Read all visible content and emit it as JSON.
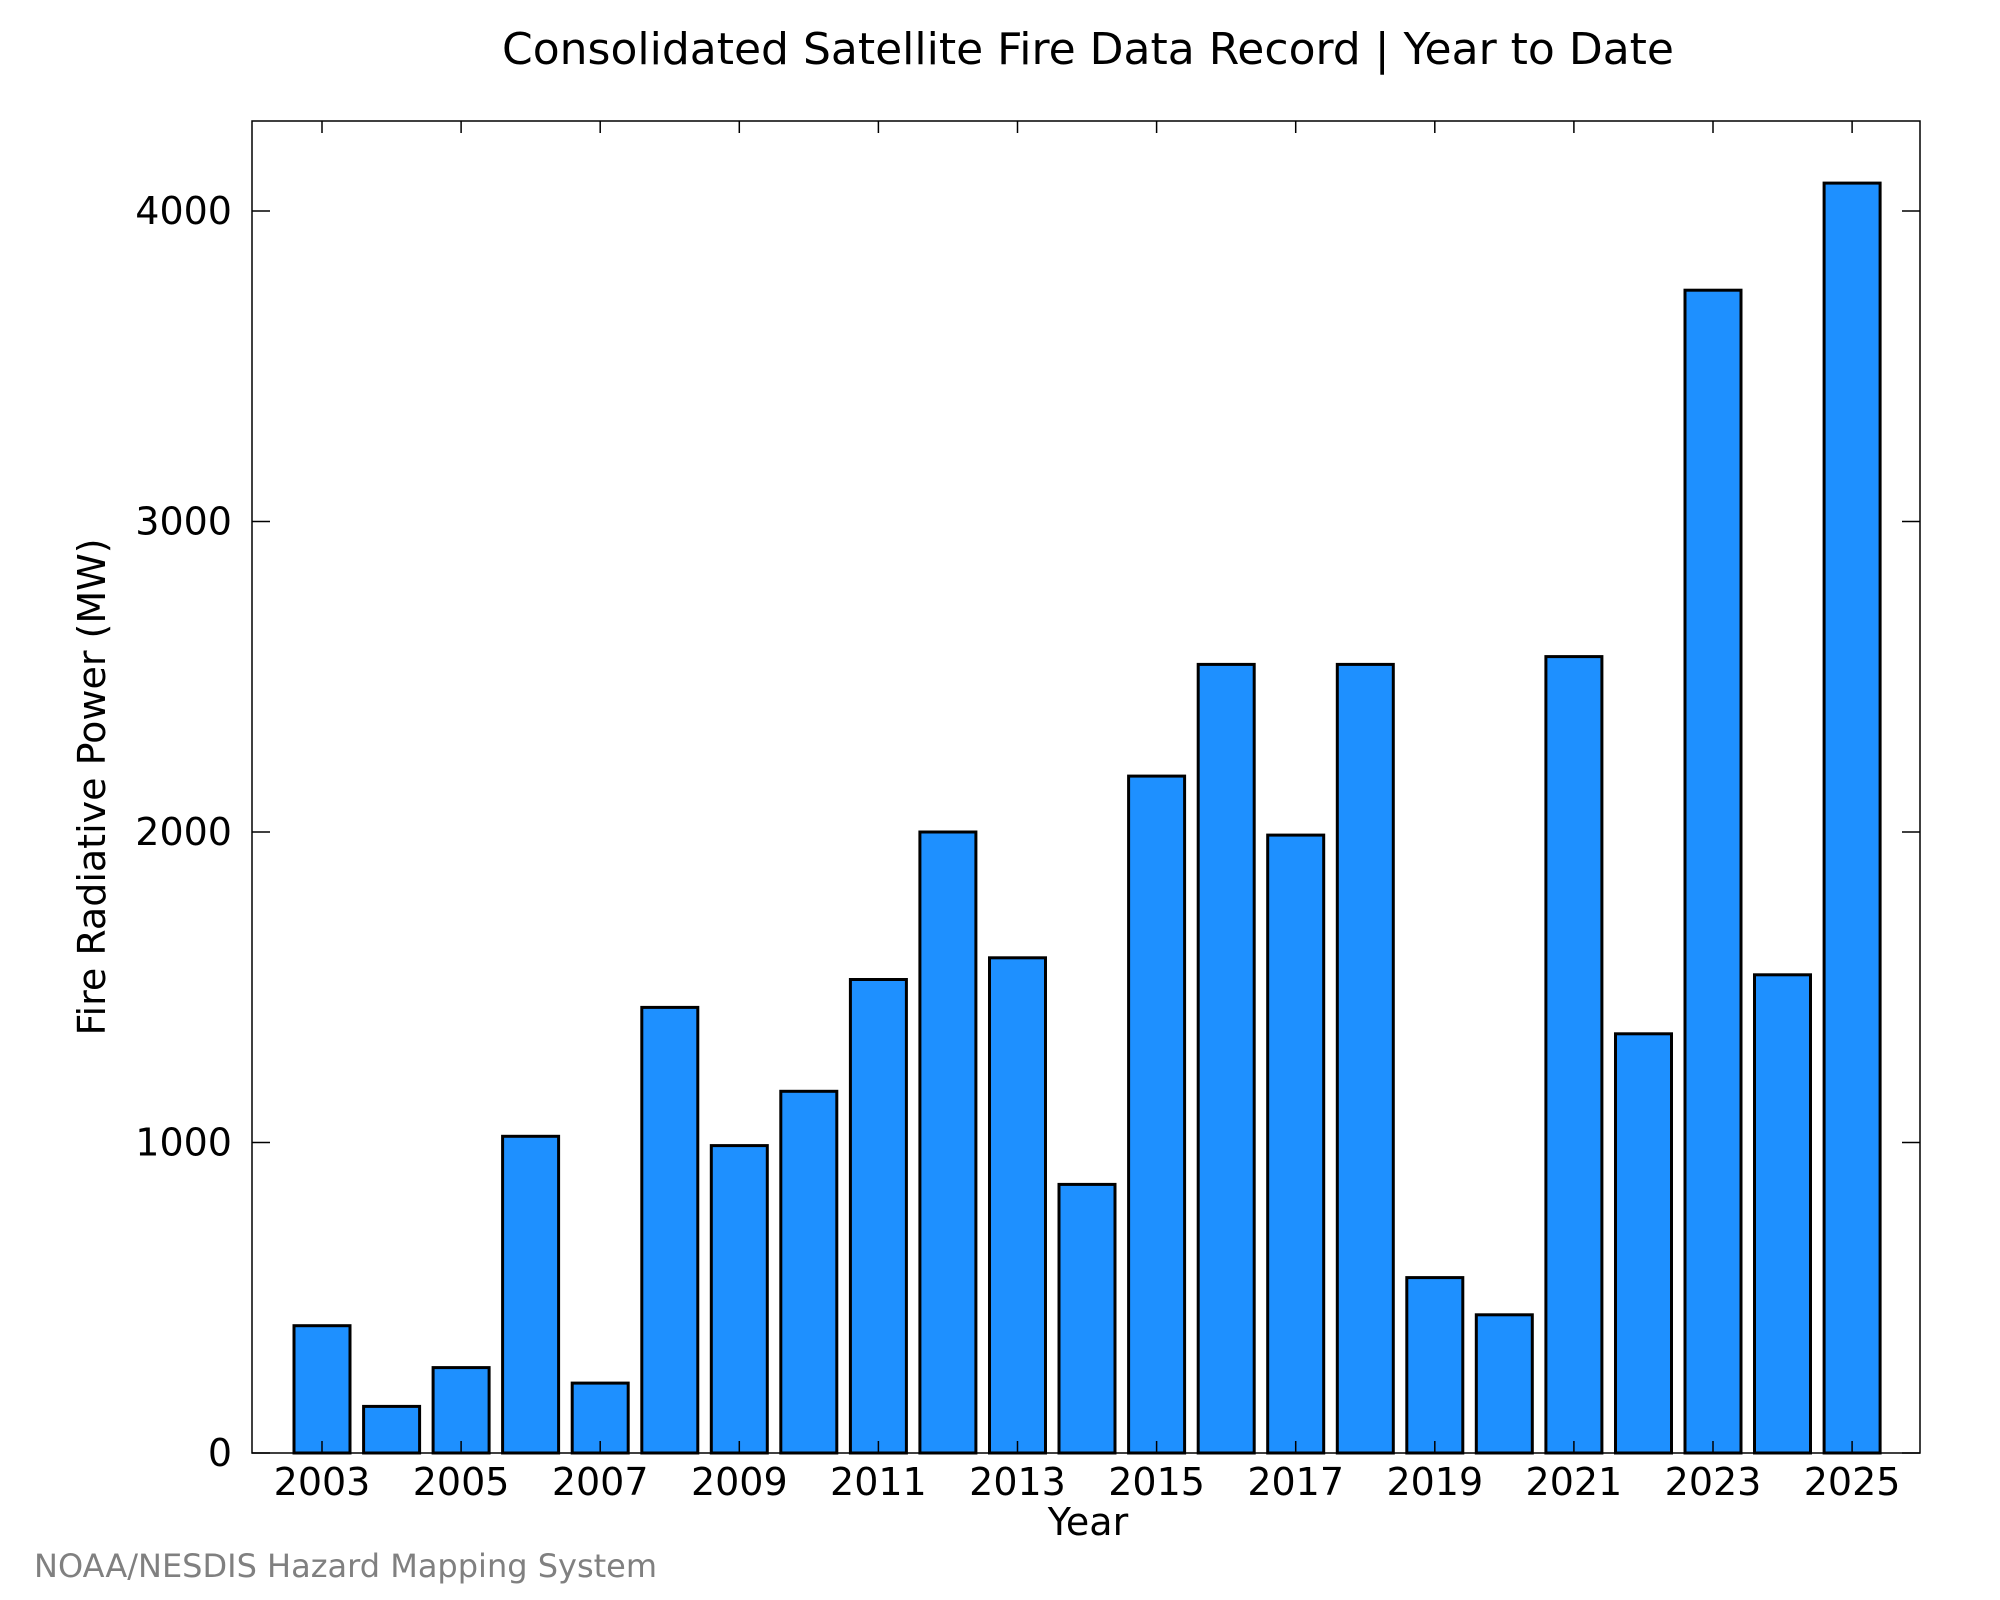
{
  "chart_data": {
    "type": "bar",
    "title": "Consolidated Satellite Fire Data Record | Year to Date",
    "xlabel": "Year",
    "ylabel": "Fire Radiative Power (MW)",
    "categories": [
      "2003",
      "2004",
      "2005",
      "2006",
      "2007",
      "2008",
      "2009",
      "2010",
      "2011",
      "2012",
      "2013",
      "2014",
      "2015",
      "2016",
      "2017",
      "2018",
      "2019",
      "2020",
      "2021",
      "2022",
      "2023",
      "2024",
      "2025"
    ],
    "values": [
      410,
      150,
      275,
      1020,
      225,
      1435,
      990,
      1165,
      1525,
      2000,
      1595,
      865,
      2180,
      2540,
      1990,
      2540,
      565,
      445,
      2565,
      1350,
      3745,
      1540,
      4090
    ],
    "x_tick_labels": [
      "2003",
      "2005",
      "2007",
      "2009",
      "2011",
      "2013",
      "2015",
      "2017",
      "2019",
      "2021",
      "2023",
      "2025"
    ],
    "y_tick_labels": [
      "0",
      "1000",
      "2000",
      "3000",
      "4000"
    ],
    "y_ticks": [
      0,
      1000,
      2000,
      3000,
      4000
    ],
    "ylim": [
      0,
      4290
    ],
    "grid": false,
    "legend": false,
    "bar_color": "#1e90ff",
    "bar_edge_color": "#000000"
  },
  "credit": "NOAA/NESDIS Hazard Mapping System"
}
